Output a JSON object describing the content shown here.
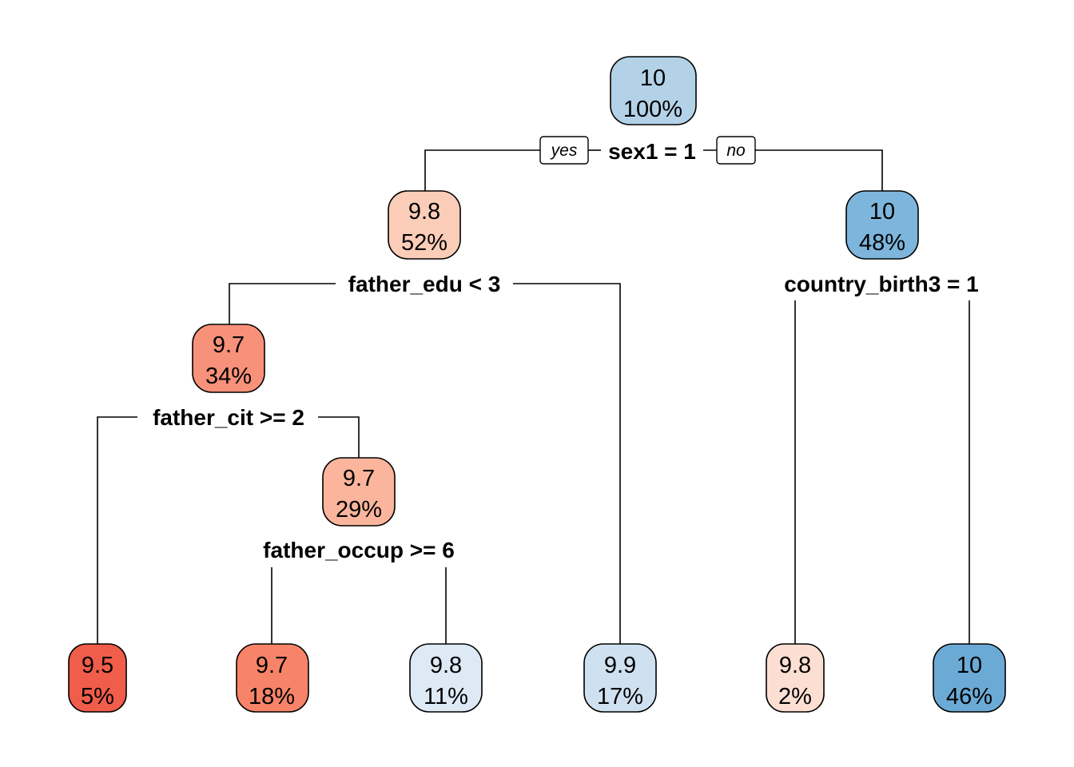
{
  "nodes": [
    {
      "id": "root",
      "value": "10",
      "pct": "100%",
      "fill": "#b3d2e8"
    },
    {
      "id": "n2",
      "value": "9.8",
      "pct": "52%",
      "fill": "#fbcdb8"
    },
    {
      "id": "n3",
      "value": "10",
      "pct": "48%",
      "fill": "#7db5dc"
    },
    {
      "id": "n4",
      "value": "9.7",
      "pct": "34%",
      "fill": "#f8917a"
    },
    {
      "id": "n5",
      "value": "9.7",
      "pct": "29%",
      "fill": "#fab59c"
    },
    {
      "id": "leaf1",
      "value": "9.5",
      "pct": "5%",
      "fill": "#f05d4a"
    },
    {
      "id": "leaf2",
      "value": "9.7",
      "pct": "18%",
      "fill": "#f78468"
    },
    {
      "id": "leaf3",
      "value": "9.8",
      "pct": "11%",
      "fill": "#dde9f5"
    },
    {
      "id": "leaf4",
      "value": "9.9",
      "pct": "17%",
      "fill": "#cfe1f1"
    },
    {
      "id": "leaf5",
      "value": "9.8",
      "pct": "2%",
      "fill": "#fcdfd2"
    },
    {
      "id": "leaf6",
      "value": "10",
      "pct": "46%",
      "fill": "#6caad6"
    }
  ],
  "splits": {
    "root": "sex1 = 1",
    "n2": "father_edu < 3",
    "n3": "country_birth3 = 1",
    "n4": "father_cit >= 2",
    "n5": "father_occup >= 6"
  },
  "branch_tags": {
    "yes": "yes",
    "no": "no"
  }
}
